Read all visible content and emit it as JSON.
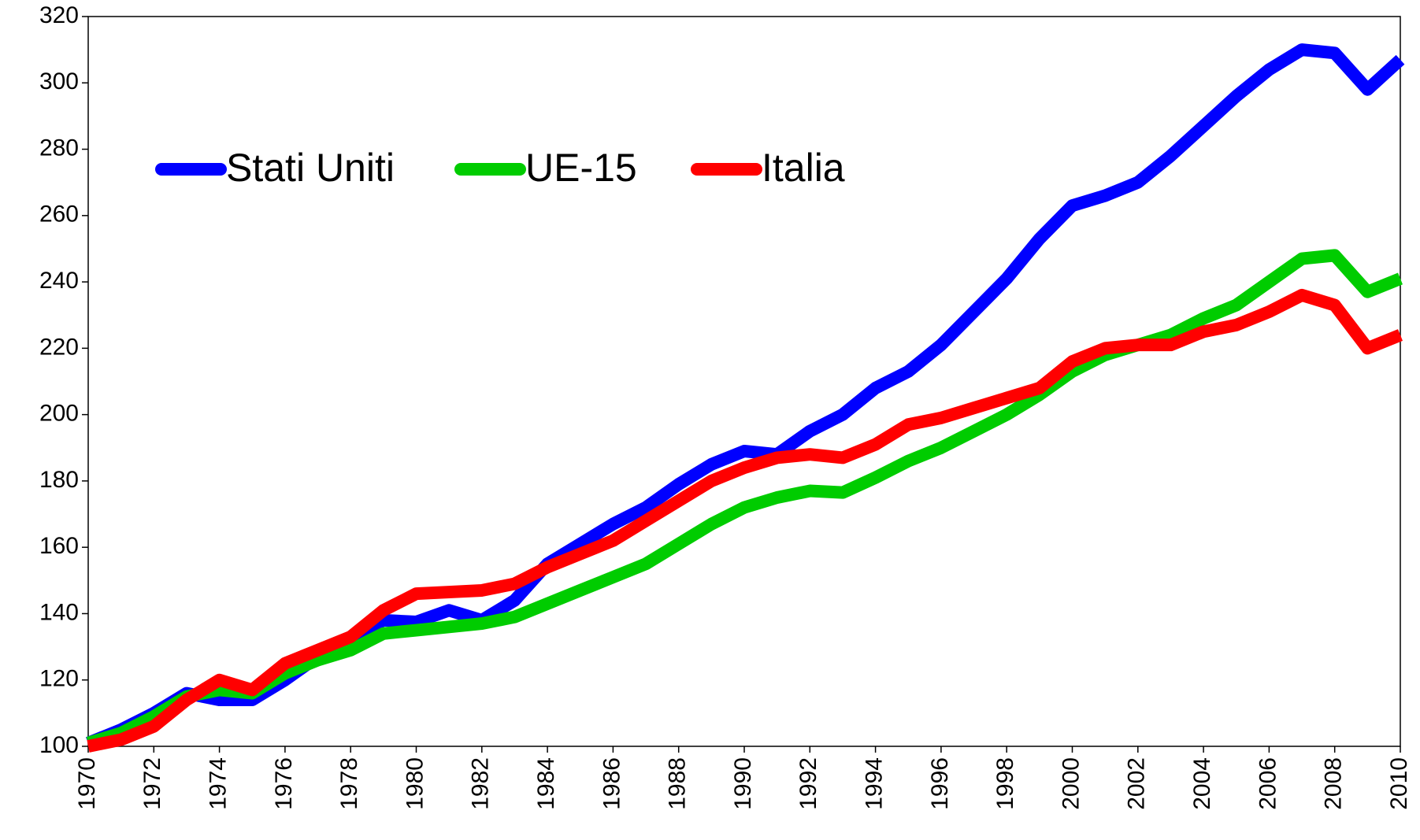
{
  "chart_data": {
    "type": "line",
    "x": [
      1970,
      1971,
      1972,
      1973,
      1974,
      1975,
      1976,
      1977,
      1978,
      1979,
      1980,
      1981,
      1982,
      1983,
      1984,
      1985,
      1986,
      1987,
      1988,
      1989,
      1990,
      1991,
      1992,
      1993,
      1994,
      1995,
      1996,
      1997,
      1998,
      1999,
      2000,
      2001,
      2002,
      2003,
      2004,
      2005,
      2006,
      2007,
      2008,
      2009,
      2010
    ],
    "series": [
      {
        "name": "Stati Uniti",
        "color": "#0000ff",
        "values": [
          101,
          105,
          110,
          116,
          114,
          114,
          120,
          127,
          133,
          138,
          137.5,
          141,
          138,
          144,
          155,
          161,
          167,
          172,
          179,
          185,
          189,
          188,
          195,
          200,
          208,
          213,
          221,
          231,
          241,
          253,
          263,
          266,
          270,
          278,
          287,
          296,
          304,
          310,
          309,
          298,
          307
        ]
      },
      {
        "name": "UE-15",
        "color": "#00cc00",
        "values": [
          101,
          104,
          109,
          115,
          117,
          116,
          122,
          126,
          129,
          134,
          135,
          136,
          137,
          139,
          143,
          147,
          151,
          155,
          161,
          167,
          172,
          175,
          177,
          176.5,
          181,
          186,
          190,
          195,
          200,
          206,
          213,
          218,
          221,
          224,
          229,
          233,
          240,
          247,
          248,
          237,
          241
        ]
      },
      {
        "name": "Italia",
        "color": "#ff0000",
        "values": [
          100,
          102,
          106,
          114,
          120,
          117,
          125,
          129,
          133,
          141,
          146,
          146.5,
          147,
          149,
          154,
          158,
          162,
          168,
          174,
          180,
          184,
          187,
          188,
          187,
          191,
          197,
          199,
          202,
          205,
          208,
          216,
          220,
          221,
          221,
          225,
          227,
          231,
          236,
          233,
          220,
          224
        ]
      }
    ],
    "xlim": [
      1970,
      2010
    ],
    "xticks": [
      1970,
      1972,
      1974,
      1976,
      1978,
      1980,
      1982,
      1984,
      1986,
      1988,
      1990,
      1992,
      1994,
      1996,
      1998,
      2000,
      2002,
      2004,
      2006,
      2008,
      2010
    ],
    "ylim": [
      100,
      320
    ],
    "yticks": [
      100,
      120,
      140,
      160,
      180,
      200,
      220,
      240,
      260,
      280,
      300,
      320
    ],
    "legend": "upper-left"
  }
}
